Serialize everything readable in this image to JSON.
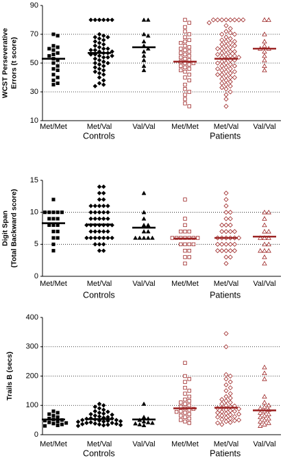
{
  "chart_data": [
    {
      "type": "strip",
      "ylabel": [
        "WCST Perseverative",
        "Errors (t score)"
      ],
      "categories": [
        "Met/Met",
        "Met/Val",
        "Val/Val"
      ],
      "markers": [
        "square",
        "diamond",
        "triangle"
      ],
      "ylim": [
        10,
        90
      ],
      "yticks": [
        10,
        30,
        50,
        70,
        90
      ],
      "grid": true,
      "series": [
        {
          "name": "Controls",
          "color": "#000000",
          "filled": true,
          "values": [
            [
              70,
              69,
              62,
              61,
              60,
              59,
              57,
              56,
              55,
              53,
              52,
              50,
              48,
              46,
              45,
              42,
              40,
              38,
              36,
              35
            ],
            [
              80,
              80,
              80,
              80,
              80,
              80,
              70,
              69,
              68,
              68,
              67,
              66,
              65,
              64,
              63,
              62,
              61,
              60,
              60,
              59,
              59,
              58,
              58,
              57,
              57,
              56,
              56,
              55,
              55,
              54,
              54,
              53,
              52,
              51,
              50,
              50,
              49,
              48,
              47,
              46,
              45,
              44,
              43,
              42,
              40,
              38,
              36,
              35,
              34
            ],
            [
              80,
              80,
              70,
              69,
              65,
              62,
              60,
              58,
              55,
              52,
              48,
              45
            ]
          ],
          "means": [
            53,
            57,
            61
          ]
        },
        {
          "name": "Patients",
          "color": "#9b2323",
          "filled": false,
          "values": [
            [
              80,
              78,
              75,
              72,
              70,
              68,
              66,
              65,
              64,
              62,
              61,
              60,
              59,
              58,
              57,
              56,
              55,
              54,
              53,
              52,
              51,
              50,
              50,
              49,
              48,
              47,
              46,
              45,
              44,
              42,
              40,
              38,
              35,
              32,
              30,
              28,
              25,
              22,
              20
            ],
            [
              80,
              80,
              80,
              80,
              80,
              80,
              80,
              80,
              78,
              76,
              74,
              72,
              71,
              70,
              70,
              68,
              67,
              66,
              65,
              65,
              64,
              63,
              62,
              62,
              61,
              60,
              60,
              59,
              58,
              58,
              57,
              56,
              56,
              55,
              55,
              54,
              54,
              53,
              52,
              52,
              51,
              50,
              50,
              49,
              48,
              48,
              47,
              46,
              46,
              45,
              44,
              44,
              43,
              42,
              42,
              41,
              40,
              40,
              39,
              38,
              37,
              36,
              35,
              34,
              33,
              32,
              30,
              28,
              25,
              20
            ],
            [
              80,
              80,
              70,
              65,
              62,
              60,
              60,
              58,
              55,
              52,
              48,
              45
            ]
          ],
          "means": [
            51,
            53,
            60
          ]
        }
      ]
    },
    {
      "type": "strip",
      "ylabel": [
        "Digit Span",
        "(Total Backward score)"
      ],
      "categories": [
        "Met/Met",
        "Met/Val",
        "Val/Val"
      ],
      "markers": [
        "square",
        "diamond",
        "triangle"
      ],
      "ylim": [
        0,
        15
      ],
      "yticks": [
        0,
        5,
        10,
        15
      ],
      "grid": true,
      "series": [
        {
          "name": "Controls",
          "color": "#000000",
          "filled": true,
          "values": [
            [
              12,
              10,
              10,
              10,
              10,
              10,
              9,
              9,
              9,
              8,
              8,
              8,
              7,
              7,
              6,
              6,
              5,
              4
            ],
            [
              14,
              14,
              13,
              13,
              12,
              12,
              11,
              11,
              11,
              11,
              11,
              10,
              10,
              10,
              10,
              10,
              9,
              9,
              9,
              9,
              9,
              8,
              8,
              8,
              8,
              8,
              8,
              8,
              7,
              7,
              7,
              7,
              7,
              6,
              6,
              6,
              6,
              6,
              6,
              6,
              5,
              5,
              5,
              4,
              4
            ],
            [
              13,
              10,
              9,
              8,
              8,
              7,
              7,
              6,
              6,
              6,
              6,
              6
            ]
          ],
          "means": [
            8.3,
            8.1,
            7.6
          ]
        },
        {
          "name": "Patients",
          "color": "#9b2323",
          "filled": false,
          "values": [
            [
              12,
              9,
              8,
              7,
              7,
              7,
              6,
              6,
              6,
              6,
              6,
              6,
              6,
              5,
              5,
              5,
              5,
              4,
              4,
              3,
              3,
              2
            ],
            [
              13,
              12,
              11,
              10,
              10,
              9,
              9,
              8,
              8,
              8,
              7,
              7,
              7,
              7,
              6,
              6,
              6,
              6,
              6,
              6,
              5,
              5,
              5,
              5,
              5,
              4,
              4,
              4,
              4,
              4,
              3,
              3,
              2
            ],
            [
              10,
              10,
              9,
              8,
              7,
              7,
              6,
              6,
              6,
              5,
              5,
              4,
              4,
              4,
              3,
              2
            ]
          ],
          "means": [
            5.9,
            6,
            6.2
          ]
        }
      ]
    },
    {
      "type": "strip",
      "ylabel": [
        "Trails B (secs)"
      ],
      "categories": [
        "Met/Met",
        "Met/Val",
        "Val/Val"
      ],
      "markers": [
        "square",
        "diamond",
        "triangle"
      ],
      "ylim": [
        0,
        400
      ],
      "yticks": [
        0,
        100,
        200,
        300,
        400
      ],
      "grid": true,
      "series": [
        {
          "name": "Controls",
          "color": "#000000",
          "filled": true,
          "values": [
            [
              80,
              75,
              70,
              65,
              60,
              55,
              52,
              50,
              48,
              45,
              42,
              40,
              38,
              35,
              32,
              30
            ],
            [
              105,
              100,
              95,
              90,
              85,
              80,
              78,
              75,
              72,
              70,
              68,
              65,
              62,
              60,
              58,
              56,
              55,
              54,
              52,
              50,
              50,
              48,
              47,
              46,
              45,
              44,
              42,
              40,
              40,
              38,
              37,
              36,
              35,
              34,
              33,
              32,
              30
            ],
            [
              105,
              60,
              55,
              50,
              45,
              42,
              40,
              38,
              35,
              32
            ]
          ],
          "means": [
            52,
            53,
            52
          ]
        },
        {
          "name": "Patients",
          "color": "#9b2323",
          "filled": false,
          "values": [
            [
              245,
              200,
              190,
              180,
              160,
              150,
              140,
              130,
              120,
              115,
              110,
              105,
              100,
              95,
              90,
              88,
              85,
              80,
              78,
              75,
              70,
              65,
              60,
              55,
              50,
              45,
              40
            ],
            [
              345,
              300,
              205,
              200,
              190,
              180,
              170,
              160,
              150,
              140,
              130,
              125,
              120,
              115,
              110,
              105,
              100,
              98,
              95,
              92,
              90,
              88,
              85,
              82,
              80,
              78,
              75,
              72,
              70,
              68,
              65,
              62,
              60,
              58,
              55,
              52,
              50,
              48,
              45,
              42,
              40,
              35
            ],
            [
              230,
              210,
              190,
              130,
              110,
              100,
              95,
              90,
              85,
              80,
              75,
              70,
              65,
              60,
              55,
              50,
              45,
              40,
              35,
              30
            ]
          ],
          "means": [
            90,
            92,
            83
          ]
        }
      ]
    }
  ]
}
